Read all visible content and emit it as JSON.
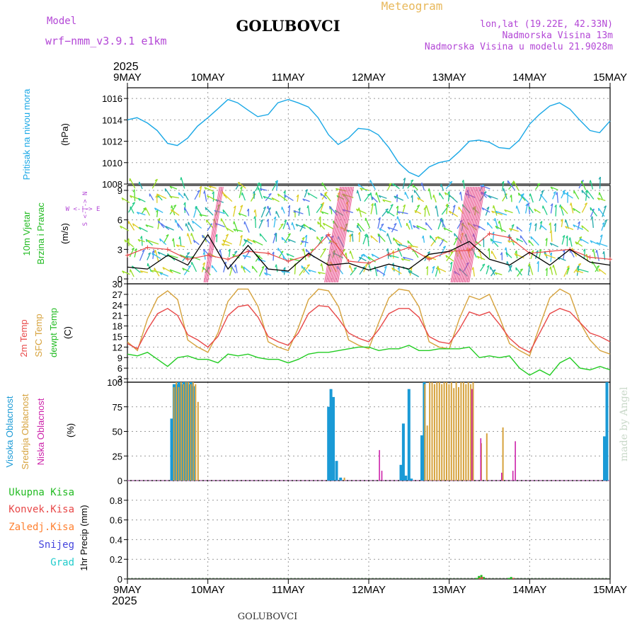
{
  "header": {
    "model_label": "Model",
    "model_name": "wrf−nmm_v3.9.1  e1km",
    "station": "GOLUBOVCI",
    "chart_title": "Meteogram",
    "coords": "lon,lat (19.22E, 42.33N)",
    "elevation": "Nadmorska Visina 13m",
    "model_elevation": "Nadmorska Visina u modelu 21.9028m",
    "year_top": "2025",
    "year_bottom": "2025",
    "footer_station": "GOLUBOVCI",
    "credit": "made by Angel"
  },
  "time_axis": {
    "start_label": "9MAY",
    "labels": [
      "9MAY",
      "10MAY",
      "11MAY",
      "12MAY",
      "13MAY",
      "14MAY",
      "15MAY"
    ],
    "days": 6
  },
  "colors": {
    "pressure": "#1aa8e6",
    "temp2m": "#e84848",
    "sfc": "#d6a23c",
    "dewpt": "#22cc22",
    "wind_speed": "#000000",
    "gust": "#e84848",
    "high_cloud": "#1a9ad6",
    "mid_cloud": "#d6a23c",
    "low_cloud": "#cc22aa",
    "total_precip": "#22bb22",
    "conv_precip": "#e84848",
    "frozen_precip": "#ff8030",
    "snow": "#4444dd",
    "hail": "#22cccc",
    "grid": "#999999"
  },
  "chart_data": [
    {
      "type": "line",
      "panel": "pressure",
      "ylabel": "Pritisak na nivou mora",
      "unit": "(hPa)",
      "ylim": [
        1008,
        1017
      ],
      "yticks": [
        1008,
        1010,
        1012,
        1014,
        1016
      ],
      "grid": true,
      "x_days": [
        0,
        0.12,
        0.25,
        0.37,
        0.5,
        0.62,
        0.75,
        0.87,
        1.0,
        1.12,
        1.25,
        1.37,
        1.5,
        1.62,
        1.75,
        1.87,
        2.0,
        2.12,
        2.25,
        2.37,
        2.5,
        2.62,
        2.75,
        2.87,
        3.0,
        3.12,
        3.25,
        3.37,
        3.5,
        3.62,
        3.75,
        3.87,
        4.0,
        4.12,
        4.25,
        4.37,
        4.5,
        4.62,
        4.75,
        4.87,
        5.0,
        5.12,
        5.25,
        5.37,
        5.5,
        5.62,
        5.75,
        5.87,
        6.0
      ],
      "series": [
        {
          "values": [
            1014.0,
            1014.2,
            1013.7,
            1013.0,
            1011.8,
            1011.6,
            1012.3,
            1013.4,
            1014.2,
            1015.0,
            1015.9,
            1015.6,
            1014.9,
            1014.3,
            1014.5,
            1015.6,
            1015.9,
            1015.6,
            1015.2,
            1014.2,
            1012.6,
            1011.7,
            1012.3,
            1013.2,
            1013.1,
            1012.6,
            1011.4,
            1010.0,
            1009.1,
            1008.7,
            1009.6,
            1010.0,
            1010.2,
            1011.0,
            1012.0,
            1012.1,
            1011.9,
            1011.4,
            1011.3,
            1012.1,
            1013.6,
            1014.5,
            1015.3,
            1015.6,
            1015.0,
            1014.0,
            1013.0,
            1012.8,
            1013.9
          ]
        }
      ]
    },
    {
      "type": "line",
      "panel": "wind",
      "ylabel": "10m Vjetar Brzina i Pravac",
      "unit": "(m/s)",
      "compass": "W <-|-> E  S <-|-> N",
      "ylim": [
        -0.5,
        9.5
      ],
      "yticks": [
        0,
        3,
        6,
        9
      ],
      "grid": true,
      "x_days": [
        0,
        0.25,
        0.5,
        0.75,
        1.0,
        1.25,
        1.5,
        1.75,
        2.0,
        2.25,
        2.5,
        2.75,
        3.0,
        3.25,
        3.5,
        3.75,
        4.0,
        4.25,
        4.5,
        4.75,
        5.0,
        5.25,
        5.5,
        5.75,
        6.0
      ],
      "series": [
        {
          "name": "speed",
          "values": [
            1.2,
            1.0,
            2.4,
            1.4,
            4.5,
            1.0,
            3.4,
            1.0,
            0.8,
            2.6,
            1.4,
            1.6,
            0.9,
            1.5,
            1.0,
            2.5,
            2.8,
            3.8,
            2.0,
            1.4,
            2.7,
            1.4,
            3.0,
            1.7,
            1.4
          ]
        },
        {
          "name": "gust",
          "values": [
            2.4,
            3.2,
            3.0,
            2.0,
            2.4,
            2.0,
            2.8,
            2.6,
            1.8,
            2.4,
            4.5,
            1.8,
            1.6,
            2.5,
            3.2,
            2.0,
            2.8,
            2.9,
            4.6,
            4.2,
            2.6,
            2.8,
            3.0,
            2.2,
            2.0
          ]
        }
      ]
    },
    {
      "type": "line",
      "panel": "temperature",
      "ylabel": "2m Temp  SFC Temp  dewpt Temp",
      "unit": "(C)",
      "ylim": [
        2,
        30
      ],
      "yticks": [
        3,
        6,
        9,
        12,
        15,
        18,
        21,
        24,
        27,
        30
      ],
      "grid": true,
      "x_days": [
        0,
        0.125,
        0.25,
        0.375,
        0.5,
        0.625,
        0.75,
        0.875,
        1.0,
        1.125,
        1.25,
        1.375,
        1.5,
        1.625,
        1.75,
        1.875,
        2.0,
        2.125,
        2.25,
        2.375,
        2.5,
        2.625,
        2.75,
        2.875,
        3.0,
        3.125,
        3.25,
        3.375,
        3.5,
        3.625,
        3.75,
        3.875,
        4.0,
        4.125,
        4.25,
        4.375,
        4.5,
        4.625,
        4.75,
        4.875,
        5.0,
        5.125,
        5.25,
        5.375,
        5.5,
        5.625,
        5.75,
        5.875,
        6.0
      ],
      "series": [
        {
          "name": "2m Temp",
          "values": [
            13.0,
            11.5,
            17.0,
            21.5,
            23.0,
            21.0,
            15.5,
            14.0,
            12.0,
            15.0,
            21.0,
            23.5,
            24.0,
            20.5,
            15.0,
            13.5,
            12.5,
            16.0,
            21.5,
            23.8,
            23.5,
            20.0,
            16.0,
            14.5,
            13.5,
            17.0,
            21.5,
            23.0,
            23.0,
            20.5,
            15.0,
            13.5,
            13.0,
            17.0,
            22.0,
            21.0,
            22.0,
            18.5,
            14.5,
            12.0,
            10.5,
            16.0,
            21.5,
            23.0,
            22.0,
            19.0,
            16.0,
            15.0,
            13.5
          ]
        },
        {
          "name": "SFC Temp",
          "values": [
            13.5,
            11.0,
            20.0,
            26.0,
            28.0,
            25.5,
            14.0,
            12.0,
            10.5,
            16.0,
            25.0,
            28.5,
            28.5,
            23.5,
            13.5,
            12.0,
            11.0,
            17.5,
            25.5,
            28.5,
            28.0,
            23.5,
            14.0,
            12.5,
            11.5,
            19.0,
            26.0,
            28.5,
            28.0,
            23.5,
            13.5,
            12.0,
            11.5,
            20.0,
            26.5,
            25.5,
            27.0,
            20.5,
            13.0,
            11.0,
            9.5,
            18.0,
            26.0,
            28.5,
            27.0,
            19.0,
            14.0,
            11.0,
            10.0
          ]
        },
        {
          "name": "dewpt Temp",
          "values": [
            10.0,
            9.5,
            10.5,
            8.5,
            6.5,
            9.0,
            9.5,
            8.5,
            8.5,
            7.5,
            10.0,
            9.5,
            10.0,
            9.0,
            8.5,
            8.5,
            7.5,
            8.5,
            10.0,
            10.5,
            10.5,
            11.0,
            11.5,
            12.0,
            12.0,
            11.0,
            11.5,
            11.5,
            12.5,
            11.0,
            11.0,
            11.5,
            11.5,
            11.5,
            12.0,
            9.0,
            9.5,
            9.0,
            9.5,
            6.0,
            4.0,
            5.5,
            4.0,
            7.5,
            9.0,
            6.0,
            5.5,
            6.5,
            5.5
          ]
        }
      ]
    },
    {
      "type": "bar",
      "panel": "clouds",
      "ylabel": "Visoka Oblacnost  Srednja Oblacnost  Niska Oblacnost",
      "unit": "(%)",
      "ylim": [
        0,
        100
      ],
      "yticks": [
        0,
        25,
        50,
        75,
        100
      ],
      "grid": true,
      "series": [
        {
          "name": "Visoka Oblacnost",
          "x_days": [
            0.55,
            0.58,
            0.61,
            0.64,
            0.67,
            0.7,
            0.73,
            0.76,
            0.79,
            0.82,
            2.5,
            2.53,
            2.56,
            2.6,
            2.65,
            3.4,
            3.43,
            3.46,
            3.5,
            3.53,
            3.66,
            3.69,
            5.93,
            5.96
          ],
          "values": [
            63,
            98,
            98,
            100,
            98,
            100,
            100,
            98,
            100,
            96,
            75,
            93,
            85,
            20,
            3,
            16,
            58,
            5,
            93,
            2,
            46,
            100,
            45,
            100
          ]
        },
        {
          "name": "Srednja Oblacnost",
          "x_days": [
            0.56,
            0.59,
            0.62,
            0.65,
            0.68,
            0.71,
            0.74,
            0.77,
            0.8,
            0.83,
            0.86,
            2.68,
            3.68,
            3.71,
            3.74,
            3.77,
            3.8,
            3.83,
            3.86,
            3.89,
            3.92,
            3.95,
            3.98,
            4.01,
            4.04,
            4.07,
            4.1,
            4.13,
            4.16,
            4.19,
            4.22,
            4.25,
            4.28,
            4.38,
            4.45,
            4.65
          ],
          "values": [
            95,
            100,
            95,
            100,
            98,
            100,
            100,
            98,
            100,
            98,
            80,
            3,
            98,
            56,
            100,
            100,
            98,
            100,
            100,
            98,
            100,
            100,
            98,
            100,
            94,
            100,
            95,
            100,
            100,
            98,
            100,
            98,
            100,
            38,
            48,
            54
          ]
        },
        {
          "name": "Niska Oblacnost",
          "x_days": [
            3.15,
            3.18,
            4.3,
            4.41,
            4.67,
            4.81,
            4.84
          ],
          "values": [
            31,
            10,
            93,
            43,
            8,
            10,
            40
          ]
        }
      ]
    },
    {
      "type": "bar",
      "panel": "precipitation",
      "ylabel": "1hr Precip",
      "unit": "(mm)",
      "ylim": [
        0,
        1
      ],
      "yticks": [
        0,
        0.2,
        0.4,
        0.6,
        0.8
      ],
      "grid": true,
      "legend": [
        "Ukupna Kisa",
        "Konvek.Kisa",
        "Zaledj.Kisa",
        "Snijeg",
        "Grad"
      ],
      "series": [
        {
          "name": "Ukupna Kisa",
          "x_days": [
            4.34,
            4.37,
            4.4,
            4.43,
            4.74,
            4.77,
            4.8
          ],
          "values": [
            0.01,
            0.03,
            0.04,
            0.02,
            0.01,
            0.02,
            0.01
          ]
        },
        {
          "name": "Konvek.Kisa",
          "x_days": [
            4.36,
            4.39,
            4.78
          ],
          "values": [
            0.01,
            0.02,
            0.01
          ]
        },
        {
          "name": "Zaledj.Kisa",
          "x_days": [],
          "values": []
        },
        {
          "name": "Snijeg",
          "x_days": [],
          "values": []
        },
        {
          "name": "Grad",
          "x_days": [],
          "values": []
        }
      ]
    }
  ]
}
